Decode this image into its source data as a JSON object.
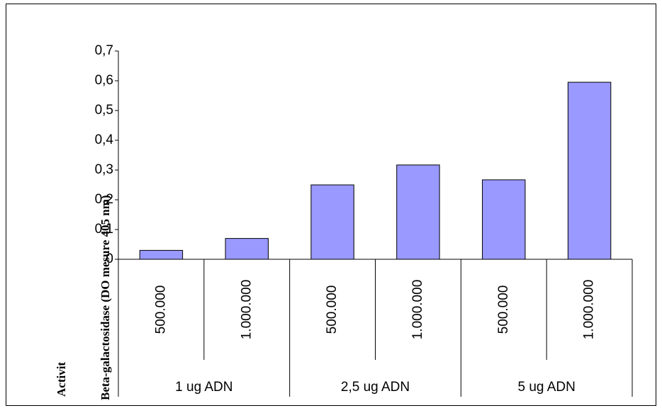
{
  "chart_data": {
    "type": "bar",
    "y_label_parts": [
      "Activit",
      "Beta-galactosidase (DO mesure 405 nm)"
    ],
    "categories": [
      "500.000",
      "1.000.000",
      "500.000",
      "1.000.000",
      "500.000",
      "1.000.000"
    ],
    "groups": [
      "1 ug ADN",
      "2,5 ug ADN",
      "5 ug ADN"
    ],
    "values": [
      0.03,
      0.07,
      0.25,
      0.317,
      0.267,
      0.595
    ],
    "color": "#9999ff",
    "ylim": [
      0,
      0.7
    ],
    "yticks": [
      0,
      {
        "value": 0.1,
        "label": "0,1"
      },
      {
        "value": 0.2,
        "label": "0,2"
      },
      {
        "value": 0.3,
        "label": "0,3"
      },
      {
        "value": 0.4,
        "label": "0,4"
      },
      {
        "value": 0.5,
        "label": "0,5"
      },
      {
        "value": 0.6,
        "label": "0,6"
      },
      {
        "value": 0.7,
        "label": "0,7"
      }
    ]
  }
}
